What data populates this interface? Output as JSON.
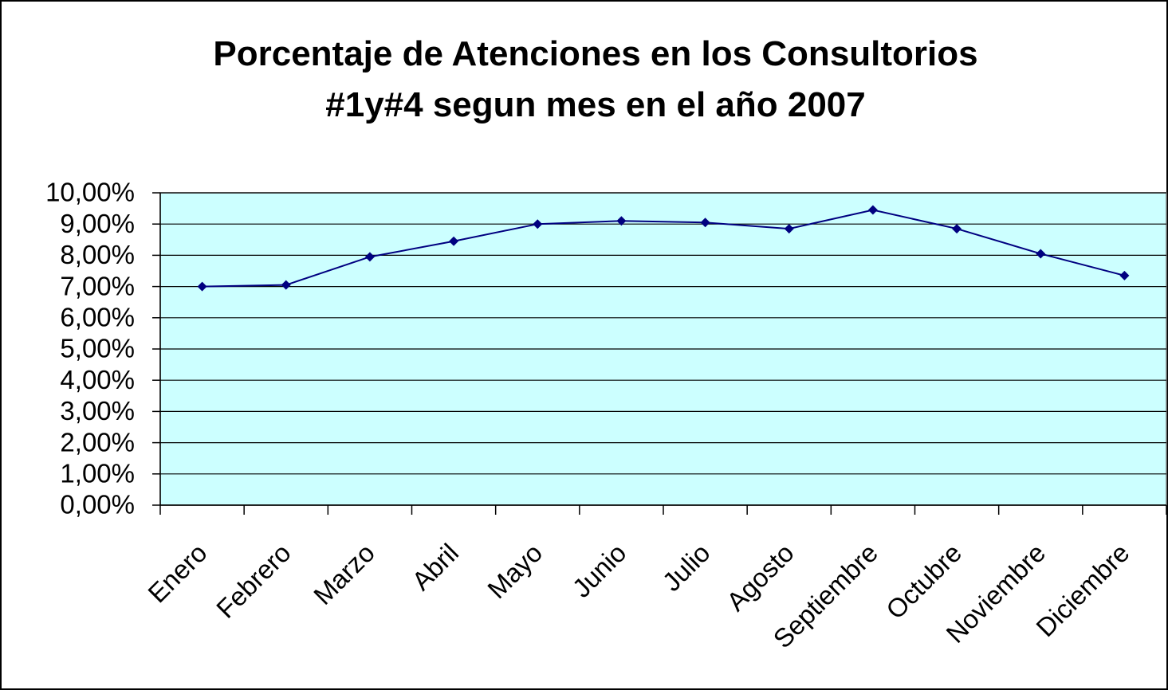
{
  "chart_data": {
    "type": "line",
    "title": [
      "Porcentaje de Atenciones en los Consultorios",
      "#1y#4 segun mes en el año 2007"
    ],
    "categories": [
      "Enero",
      "Febrero",
      "Marzo",
      "Abril",
      "Mayo",
      "Junio",
      "Julio",
      "Agosto",
      "Septiembre",
      "Octubre",
      "Noviembre",
      "Diciembre"
    ],
    "values": [
      7.0,
      7.05,
      7.95,
      8.45,
      9.0,
      9.1,
      9.05,
      8.85,
      9.45,
      8.85,
      8.05,
      7.35
    ],
    "color": "#000080",
    "ylim": [
      0,
      10
    ],
    "yticks": [
      {
        "value": 0,
        "label": "0,00%"
      },
      {
        "value": 1,
        "label": "1,00%"
      },
      {
        "value": 2,
        "label": "2,00%"
      },
      {
        "value": 3,
        "label": "3,00%"
      },
      {
        "value": 4,
        "label": "4,00%"
      },
      {
        "value": 5,
        "label": "5,00%"
      },
      {
        "value": 6,
        "label": "6,00%"
      },
      {
        "value": 7,
        "label": "7,00%"
      },
      {
        "value": 8,
        "label": "8,00%"
      },
      {
        "value": 9,
        "label": "9,00%"
      },
      {
        "value": 10,
        "label": "10,00%"
      }
    ],
    "grid": true
  }
}
